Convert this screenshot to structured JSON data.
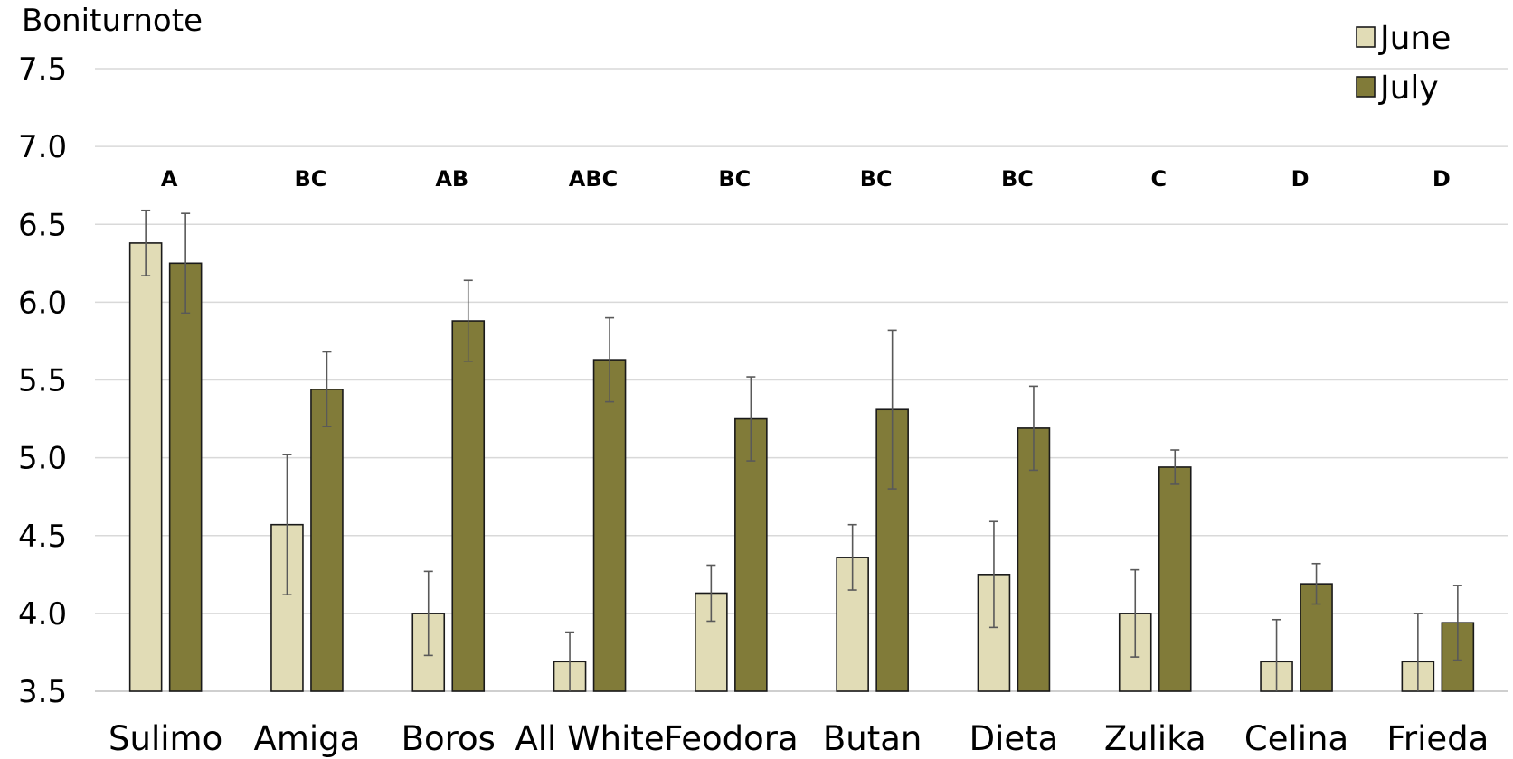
{
  "chart_data": {
    "type": "bar",
    "ylabel": "Boniturnote",
    "ylim": [
      3.5,
      7.5
    ],
    "yticks": [
      "3.5",
      "4.0",
      "4.5",
      "5.0",
      "5.5",
      "6.0",
      "6.5",
      "7.0",
      "7.5"
    ],
    "grid": true,
    "legend_position": "top-right",
    "categories": [
      "Sulimo",
      "Amiga",
      "Boros",
      "All White",
      "Feodora",
      "Butan",
      "Dieta",
      "Zulika",
      "Celina",
      "Frieda"
    ],
    "group_labels": [
      "A",
      "BC",
      "AB",
      "ABC",
      "BC",
      "BC",
      "BC",
      "C",
      "D",
      "D"
    ],
    "series": [
      {
        "name": "June",
        "color": "#e1dcb6",
        "values": [
          6.38,
          4.57,
          4.0,
          3.69,
          4.13,
          4.36,
          4.25,
          4.0,
          3.69,
          3.69
        ],
        "error": [
          0.21,
          0.45,
          0.27,
          0.19,
          0.18,
          0.21,
          0.34,
          0.28,
          0.27,
          0.31
        ]
      },
      {
        "name": "July",
        "color": "#817b39",
        "values": [
          6.25,
          5.44,
          5.88,
          5.63,
          5.25,
          5.31,
          5.19,
          4.94,
          4.19,
          3.94
        ],
        "error": [
          0.32,
          0.24,
          0.26,
          0.27,
          0.27,
          0.51,
          0.27,
          0.11,
          0.13,
          0.24
        ]
      }
    ]
  }
}
